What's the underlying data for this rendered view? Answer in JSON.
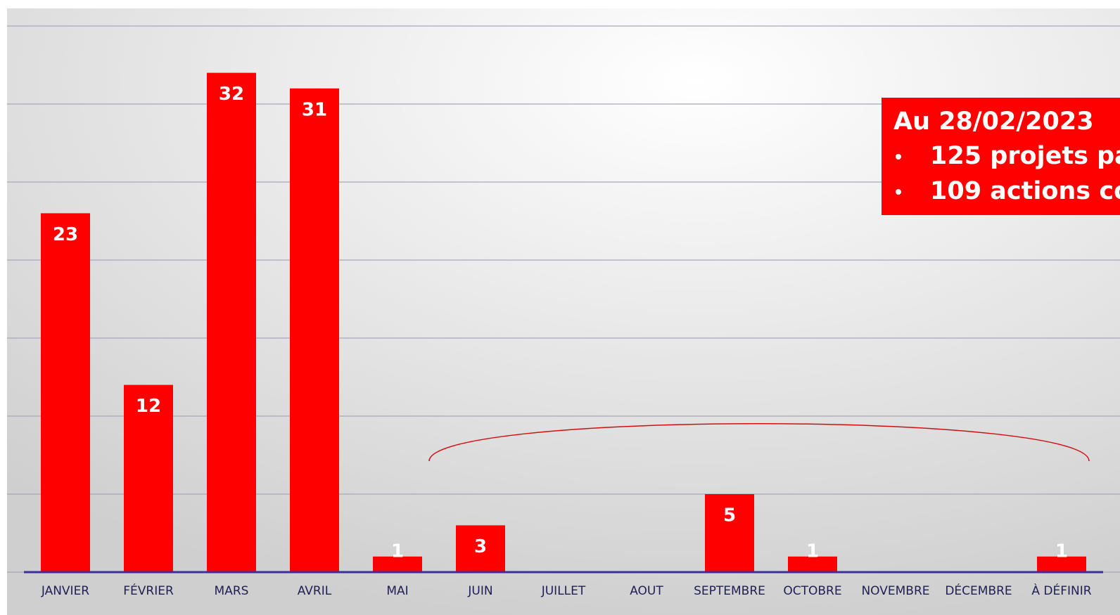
{
  "chart_data": {
    "type": "bar",
    "categories": [
      "JANVIER",
      "FÉVRIER",
      "MARS",
      "AVRIL",
      "MAI",
      "JUIN",
      "JUILLET",
      "AOUT",
      "SEPTEMBRE",
      "OCTOBRE",
      "NOVEMBRE",
      "DÉCEMBRE",
      "À DÉFINIR"
    ],
    "values": [
      23,
      12,
      32,
      31,
      1,
      3,
      null,
      null,
      5,
      1,
      null,
      null,
      1
    ],
    "color": "#ff0000",
    "ylim": [
      0,
      35
    ],
    "yticks": [
      0,
      5,
      10,
      15,
      20,
      25,
      30,
      35
    ],
    "grid": true,
    "annotation": {
      "title": "Au 28/02/2023",
      "items": [
        "125 projets pa",
        "109 actions co"
      ]
    }
  }
}
